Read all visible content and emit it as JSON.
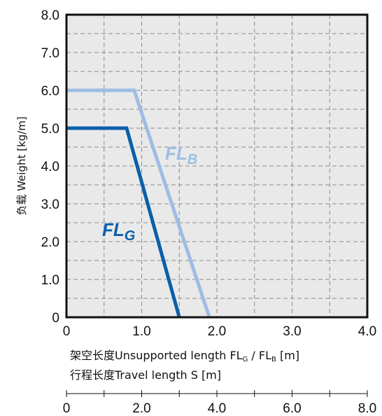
{
  "chart_data": {
    "type": "line",
    "xlim": [
      0,
      4
    ],
    "ylim": [
      0,
      8
    ],
    "x_ticks": [
      "0",
      "1.0",
      "2.0",
      "3.0",
      "4.0"
    ],
    "y_ticks": [
      "0",
      "1.0",
      "2.0",
      "3.0",
      "4.0",
      "5.0",
      "6.0",
      "7.0",
      "8.0"
    ],
    "ylabel": "负载 Weight  [kg/m]",
    "xlabel_line1_prefix": "架空长度Unsupported length FL",
    "xlabel_line1_sub1": "G",
    "xlabel_line1_mid": " / FL",
    "xlabel_line1_sub2": "B",
    "xlabel_line1_suffix": " [m]",
    "xlabel_line2": "行程长度Travel length S [m]",
    "secondary_axis": {
      "ticks": [
        "0",
        "2.0",
        "4.0",
        "6.0",
        "8.0"
      ],
      "range": [
        0,
        8
      ]
    },
    "grid": true,
    "series": [
      {
        "name": "FLB",
        "label_main": "FL",
        "label_sub": "B",
        "color": "#9dbde3",
        "x": [
          0,
          0.9,
          1.9
        ],
        "y": [
          6.0,
          6.0,
          0
        ]
      },
      {
        "name": "FLG",
        "label_main": "FL",
        "label_sub": "G",
        "color": "#0b5faa",
        "x": [
          0,
          0.8,
          1.5
        ],
        "y": [
          5.0,
          5.0,
          0
        ]
      }
    ]
  }
}
